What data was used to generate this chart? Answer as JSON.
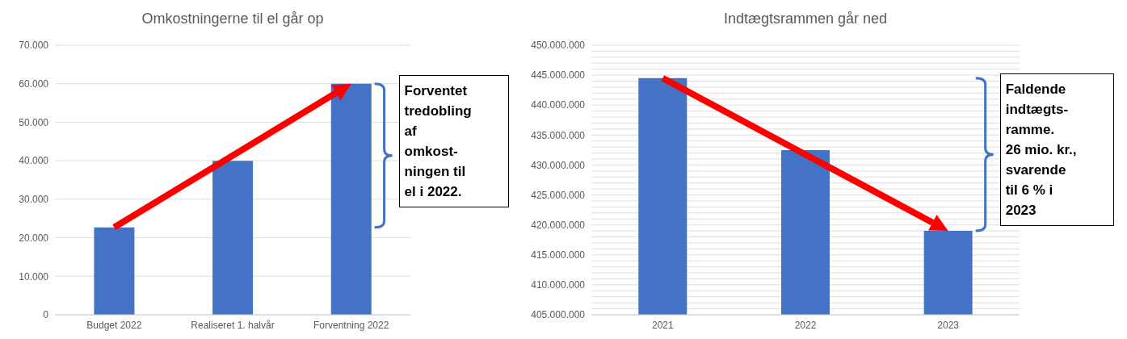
{
  "chart_data": [
    {
      "type": "bar",
      "title": "Omkostningerne til el går op",
      "categories": [
        "Budget 2022",
        "Realiseret 1. halvår",
        "Forventning 2022"
      ],
      "values": [
        22700,
        40000,
        60000
      ],
      "color": "#4472c4",
      "ylim": [
        0,
        70000
      ],
      "yticks": [
        {
          "value": 0,
          "label": "0"
        },
        {
          "value": 10000,
          "label": "10.000"
        },
        {
          "value": 20000,
          "label": "20.000"
        },
        {
          "value": 30000,
          "label": "30.000"
        },
        {
          "value": 40000,
          "label": "40.000"
        },
        {
          "value": 50000,
          "label": "50.000"
        },
        {
          "value": 60000,
          "label": "60.000"
        },
        {
          "value": 70000,
          "label": "70.000"
        }
      ],
      "grid": "y",
      "annotations": [
        "Forventet\ntredobling\naf\nomkost-\nningen til\nel i 2022."
      ]
    },
    {
      "type": "bar",
      "title": "Indtægtsrammen går ned",
      "categories": [
        "2021",
        "2022",
        "2023"
      ],
      "values": [
        444500000,
        432500000,
        419000000
      ],
      "color": "#4472c4",
      "ylim": [
        405000000,
        450000000
      ],
      "yticks": [
        {
          "value": 405000000,
          "label": "405.000.000"
        },
        {
          "value": 406000000,
          "label": null
        },
        {
          "value": 407000000,
          "label": null
        },
        {
          "value": 408000000,
          "label": null
        },
        {
          "value": 409000000,
          "label": null
        },
        {
          "value": 410000000,
          "label": "410.000.000"
        },
        {
          "value": 411000000,
          "label": null
        },
        {
          "value": 412000000,
          "label": null
        },
        {
          "value": 413000000,
          "label": null
        },
        {
          "value": 414000000,
          "label": null
        },
        {
          "value": 415000000,
          "label": "415.000.000"
        },
        {
          "value": 416000000,
          "label": null
        },
        {
          "value": 417000000,
          "label": null
        },
        {
          "value": 418000000,
          "label": null
        },
        {
          "value": 419000000,
          "label": null
        },
        {
          "value": 420000000,
          "label": "420.000.000"
        },
        {
          "value": 421000000,
          "label": null
        },
        {
          "value": 422000000,
          "label": null
        },
        {
          "value": 423000000,
          "label": null
        },
        {
          "value": 424000000,
          "label": null
        },
        {
          "value": 425000000,
          "label": "425.000.000"
        },
        {
          "value": 426000000,
          "label": null
        },
        {
          "value": 427000000,
          "label": null
        },
        {
          "value": 428000000,
          "label": null
        },
        {
          "value": 429000000,
          "label": null
        },
        {
          "value": 430000000,
          "label": "430.000.000"
        },
        {
          "value": 431000000,
          "label": null
        },
        {
          "value": 432000000,
          "label": null
        },
        {
          "value": 433000000,
          "label": null
        },
        {
          "value": 434000000,
          "label": null
        },
        {
          "value": 435000000,
          "label": "435.000.000"
        },
        {
          "value": 436000000,
          "label": null
        },
        {
          "value": 437000000,
          "label": null
        },
        {
          "value": 438000000,
          "label": null
        },
        {
          "value": 439000000,
          "label": null
        },
        {
          "value": 440000000,
          "label": "440.000.000"
        },
        {
          "value": 441000000,
          "label": null
        },
        {
          "value": 442000000,
          "label": null
        },
        {
          "value": 443000000,
          "label": null
        },
        {
          "value": 444000000,
          "label": null
        },
        {
          "value": 445000000,
          "label": "445.000.000"
        },
        {
          "value": 446000000,
          "label": null
        },
        {
          "value": 447000000,
          "label": null
        },
        {
          "value": 448000000,
          "label": null
        },
        {
          "value": 449000000,
          "label": null
        },
        {
          "value": 450000000,
          "label": "450.000.000"
        }
      ],
      "grid": "y",
      "annotations": [
        "Faldende\nindtægts-\nramme.\n26 mio. kr.,\nsvarende\ntil 6 % i\n2023"
      ]
    }
  ]
}
